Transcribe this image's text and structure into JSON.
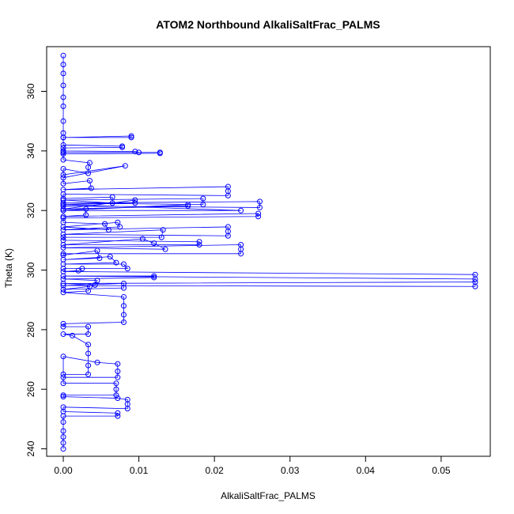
{
  "chart_data": {
    "type": "scatter",
    "title": "ATOM2 Northbound AlkaliSaltFrac_PALMS",
    "xlabel": "AlkaliSaltFrac_PALMS",
    "ylabel": "Theta (K)",
    "xlim": [
      -0.0022,
      0.0565
    ],
    "ylim": [
      237.5,
      375.0
    ],
    "x_ticks": [
      0.0,
      0.01,
      0.02,
      0.03,
      0.04,
      0.05
    ],
    "x_tick_labels": [
      "0.00",
      "0.01",
      "0.02",
      "0.03",
      "0.04",
      "0.05"
    ],
    "y_ticks": [
      240,
      260,
      280,
      300,
      320,
      340,
      360
    ],
    "y_tick_labels": [
      "240",
      "260",
      "280",
      "300",
      "320",
      "340",
      "360"
    ],
    "grid": false,
    "legend": "none",
    "marker": "open-circle",
    "connected_by_lines": true,
    "series": [
      {
        "color": "#0000ff",
        "points": [
          [
            0.0,
            372
          ],
          [
            0.0,
            369
          ],
          [
            0.0,
            366
          ],
          [
            0.0,
            362
          ],
          [
            0.0,
            358
          ],
          [
            0.0,
            355
          ],
          [
            0.0,
            350
          ],
          [
            0.0,
            346
          ],
          [
            0.0,
            344.5
          ],
          [
            0.009,
            345.0
          ],
          [
            0.009,
            344.5
          ],
          [
            0.0,
            344.5
          ],
          [
            0.0,
            342
          ],
          [
            0.0078,
            341.6
          ],
          [
            0.0078,
            341.2
          ],
          [
            0.0,
            341.0
          ],
          [
            0.0,
            340.0
          ],
          [
            0.0095,
            339.8
          ],
          [
            0.01,
            339.5
          ],
          [
            0.0,
            339.5
          ],
          [
            0.0128,
            339.5
          ],
          [
            0.0128,
            339.2
          ],
          [
            0.0,
            339.0
          ],
          [
            0.0,
            337
          ],
          [
            0.0035,
            336.0
          ],
          [
            0.0033,
            334.5
          ],
          [
            0.0033,
            332.5
          ],
          [
            0.0,
            334.0
          ],
          [
            0.0,
            332
          ],
          [
            0.0082,
            335.0
          ],
          [
            0.0,
            331.0
          ],
          [
            0.0,
            329
          ],
          [
            0.0035,
            330.0
          ],
          [
            0.0037,
            327.5
          ],
          [
            0.0,
            327.0
          ],
          [
            0.0218,
            328.0
          ],
          [
            0.0218,
            326.5
          ],
          [
            0.0218,
            325.0
          ],
          [
            0.0,
            325.5
          ],
          [
            0.0,
            324
          ],
          [
            0.0065,
            324.5
          ],
          [
            0.0065,
            322.5
          ],
          [
            0.0,
            323.5
          ],
          [
            0.0185,
            324.0
          ],
          [
            0.0185,
            322.0
          ],
          [
            0.0,
            322.5
          ],
          [
            0.026,
            323.0
          ],
          [
            0.026,
            321.0
          ],
          [
            0.0,
            321.5
          ],
          [
            0.0,
            320
          ],
          [
            0.0165,
            322.0
          ],
          [
            0.0165,
            321.5
          ],
          [
            0.0,
            320.5
          ],
          [
            0.0095,
            323.5
          ],
          [
            0.0095,
            322.5
          ],
          [
            0.0,
            322.0
          ],
          [
            0.0235,
            320.0
          ],
          [
            0.0,
            320.0
          ],
          [
            0.003,
            320.5
          ],
          [
            0.003,
            318.5
          ],
          [
            0.0,
            318.0
          ],
          [
            0.0258,
            319.0
          ],
          [
            0.0258,
            318.0
          ],
          [
            0.0,
            317.5
          ],
          [
            0.0,
            316
          ],
          [
            0.0055,
            315.5
          ],
          [
            0.006,
            313.5
          ],
          [
            0.0,
            314.5
          ],
          [
            0.0072,
            316.0
          ],
          [
            0.0075,
            314.5
          ],
          [
            0.0,
            313.5
          ],
          [
            0.0218,
            314.5
          ],
          [
            0.0218,
            313.0
          ],
          [
            0.0218,
            311.5
          ],
          [
            0.0,
            312.0
          ],
          [
            0.0132,
            313.5
          ],
          [
            0.013,
            311.0
          ],
          [
            0.0,
            311.0
          ],
          [
            0.0,
            310
          ],
          [
            0.018,
            309.5
          ],
          [
            0.018,
            308.5
          ],
          [
            0.0,
            308.5
          ],
          [
            0.0105,
            310.5
          ],
          [
            0.012,
            309.0
          ],
          [
            0.0135,
            307.0
          ],
          [
            0.0,
            307.5
          ],
          [
            0.0235,
            308.5
          ],
          [
            0.0235,
            307.0
          ],
          [
            0.0235,
            305.5
          ],
          [
            0.0,
            305.5
          ],
          [
            0.0,
            305
          ],
          [
            0.0045,
            306.5
          ],
          [
            0.0048,
            304.0
          ],
          [
            0.0,
            303.5
          ],
          [
            0.0062,
            304.5
          ],
          [
            0.007,
            302.5
          ],
          [
            0.0,
            302.0
          ],
          [
            0.008,
            302.0
          ],
          [
            0.0085,
            300.5
          ],
          [
            0.0,
            300.5
          ],
          [
            0.0025,
            300.5
          ],
          [
            0.002,
            299.8
          ],
          [
            0.0,
            299.5
          ],
          [
            0.0545,
            298.5
          ],
          [
            0.0545,
            297.0
          ],
          [
            0.0,
            298.0
          ],
          [
            0.012,
            298.0
          ],
          [
            0.012,
            297.5
          ],
          [
            0.0,
            297.0
          ],
          [
            0.0045,
            296.5
          ],
          [
            0.0042,
            295.0
          ],
          [
            0.0,
            295.5
          ],
          [
            0.0545,
            296.0
          ],
          [
            0.0545,
            294.5
          ],
          [
            0.0,
            294.8
          ],
          [
            0.008,
            295.5
          ],
          [
            0.008,
            294.0
          ],
          [
            0.0,
            293.5
          ],
          [
            0.0035,
            294.5
          ],
          [
            0.0033,
            293.0
          ],
          [
            0.0,
            292.5
          ],
          [
            0.008,
            291.0
          ],
          [
            0.008,
            288.0
          ],
          [
            0.008,
            285.0
          ],
          [
            0.008,
            282.5
          ],
          [
            0.0,
            282.0
          ],
          [
            0.0,
            281
          ],
          [
            0.0033,
            281.0
          ],
          [
            0.0033,
            278.5
          ],
          [
            0.0,
            278.5
          ],
          [
            0.0012,
            278.0
          ],
          [
            0.0033,
            275.0
          ],
          [
            0.0033,
            272.0
          ],
          [
            0.0033,
            268.0
          ],
          [
            0.0033,
            265.0
          ],
          [
            0.0,
            265.0
          ],
          [
            0.0,
            271
          ],
          [
            0.0045,
            269.0
          ],
          [
            0.0072,
            268.5
          ],
          [
            0.0072,
            266.0
          ],
          [
            0.0072,
            264.0
          ],
          [
            0.0,
            264.0
          ],
          [
            0.0,
            262.0
          ],
          [
            0.007,
            262.0
          ],
          [
            0.007,
            260.0
          ],
          [
            0.007,
            258.0
          ],
          [
            0.0,
            258.0
          ],
          [
            0.0,
            257.5
          ],
          [
            0.0072,
            257.0
          ],
          [
            0.0085,
            256.5
          ],
          [
            0.0085,
            255.0
          ],
          [
            0.0085,
            253.5
          ],
          [
            0.0,
            254.0
          ],
          [
            0.0,
            252.5
          ],
          [
            0.0072,
            252.0
          ],
          [
            0.0072,
            251.0
          ],
          [
            0.0,
            251.0
          ],
          [
            0.0,
            249
          ],
          [
            0.0,
            246
          ],
          [
            0.0,
            244
          ],
          [
            0.0,
            242
          ],
          [
            0.0,
            240
          ]
        ]
      }
    ]
  }
}
